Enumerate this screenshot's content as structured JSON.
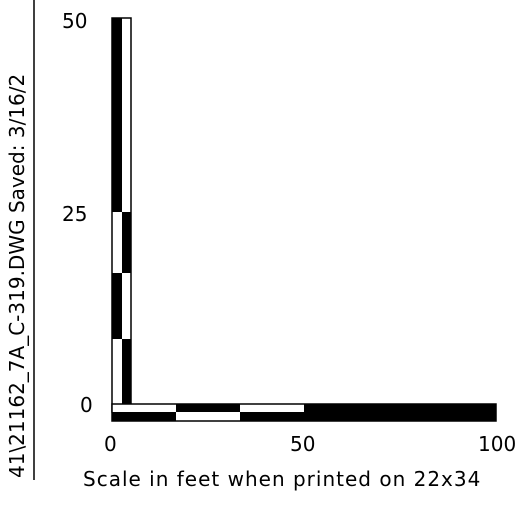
{
  "drawing": {
    "side_text": "41\\21162_7A_C-319.DWG   Saved: 3/16/2",
    "caption": "Scale in feet when printed on 22x34"
  },
  "vertical_scale": {
    "labels": [
      "50",
      "25",
      "0"
    ],
    "values": [
      50,
      25,
      0
    ]
  },
  "horizontal_scale": {
    "labels": [
      "0",
      "50",
      "100"
    ],
    "values": [
      0,
      50,
      100
    ]
  },
  "colors": {
    "ink": "#000000",
    "paper": "#ffffff"
  }
}
